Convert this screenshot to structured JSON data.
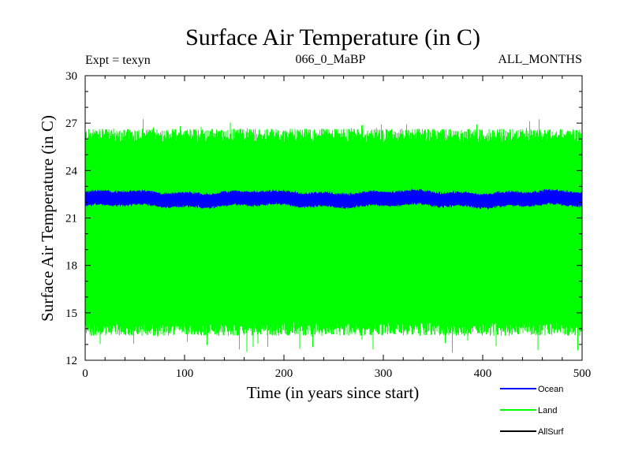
{
  "chart_data": {
    "type": "line",
    "title": "Surface Air Temperature (in C)",
    "subtitle_left": "Expt = texyn",
    "subtitle_center": "066_0_MaBP",
    "subtitle_right": "ALL_MONTHS",
    "xlabel": "Time (in years since start)",
    "ylabel": "Surface Air Temperature (in C)",
    "xlim": [
      0,
      500
    ],
    "ylim": [
      12,
      30
    ],
    "x_ticks": [
      0,
      100,
      200,
      300,
      400,
      500
    ],
    "y_ticks": [
      12,
      15,
      18,
      21,
      24,
      27,
      30
    ],
    "legend_position": "bottom-right, below plot",
    "series": [
      {
        "name": "Land",
        "color": "#00ff00",
        "description": "monthly values oscillating seasonally",
        "typical_max": 26.2,
        "typical_min": 14.0,
        "extreme_max": 27.3,
        "extreme_min": 12.4,
        "trend": "flat"
      },
      {
        "name": "Ocean",
        "color": "#0000ff",
        "description": "monthly values with small seasonal cycle",
        "typical_max": 22.55,
        "typical_min": 21.85,
        "mean": 22.2,
        "extreme_max": 23.0,
        "extreme_min": 21.5,
        "trend": "flat"
      },
      {
        "name": "AllSurf",
        "color": "#000000",
        "description": "not visible within plot",
        "trend": "flat"
      }
    ]
  }
}
